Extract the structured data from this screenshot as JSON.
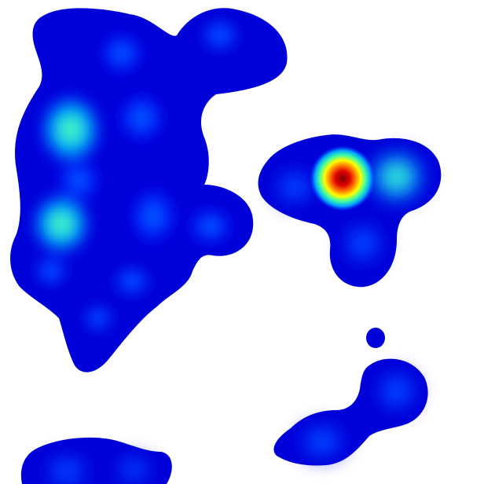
{
  "map": {
    "type": "density-heatmap",
    "background": "#ffffff",
    "colormap": [
      "#00008f",
      "#0000ff",
      "#0080ff",
      "#00ffff",
      "#80ff80",
      "#ffff00",
      "#ff8000",
      "#ff0000",
      "#800000"
    ],
    "regions": [
      {
        "name": "large-cluster-left"
      },
      {
        "name": "three-lobe-cluster-right"
      },
      {
        "name": "lower-right-cluster"
      },
      {
        "name": "small-dot-cluster"
      },
      {
        "name": "bottom-left-cluster"
      }
    ],
    "peak_color": "#800000",
    "labels": []
  }
}
